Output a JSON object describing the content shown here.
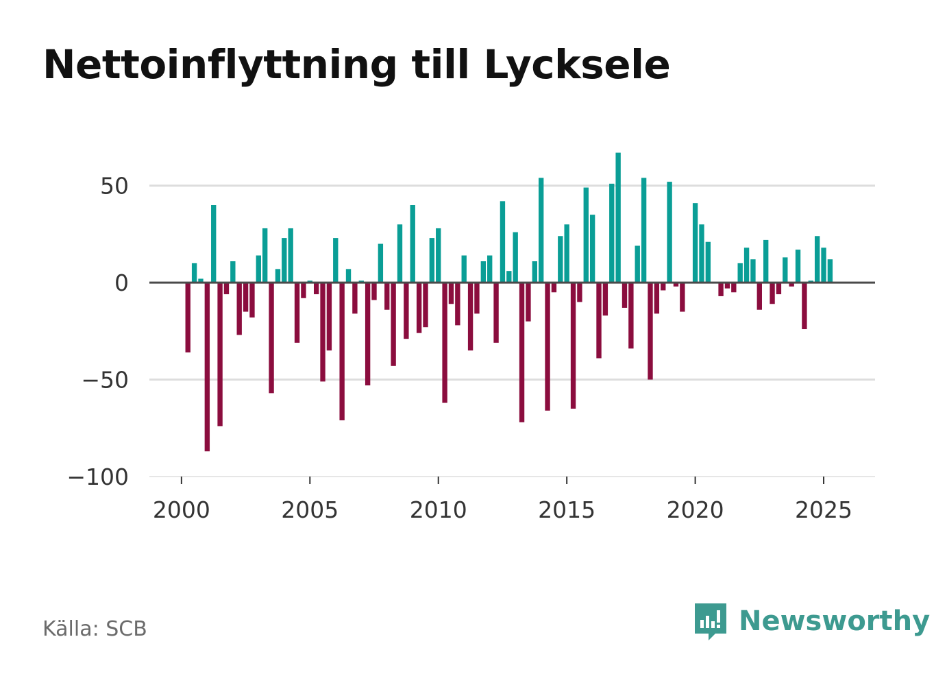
{
  "title": "Nettoinflyttning till Lycksele",
  "source": "Källa: SCB",
  "brand": {
    "name": "Newsworthy",
    "icon": "newsworthy-logo-icon"
  },
  "colors": {
    "positive": "#0a9e96",
    "negative": "#8b0d3e",
    "zero_line": "#4a4a4a",
    "grid": "#dddddd",
    "brand": "#3d9a90"
  },
  "chart_data": {
    "type": "bar",
    "title": "Nettoinflyttning till Lycksele",
    "xlabel": "",
    "ylabel": "",
    "frequency": "quarterly",
    "x_start": 2000.0,
    "x_step": 0.25,
    "xlim": [
      1998.75,
      2027.0
    ],
    "ylim": [
      -100,
      75
    ],
    "x_ticks": [
      2000,
      2005,
      2010,
      2015,
      2020,
      2025
    ],
    "x_tick_labels": [
      "2000",
      "2005",
      "2010",
      "2015",
      "2020",
      "2025"
    ],
    "y_ticks": [
      -100,
      -50,
      0,
      50
    ],
    "y_tick_labels": [
      "−100",
      "−50",
      "0",
      "50"
    ],
    "grid": true,
    "values": [
      0,
      -36,
      10,
      2,
      -87,
      40,
      -74,
      -6,
      11,
      -27,
      -15,
      -18,
      14,
      28,
      -57,
      7,
      23,
      28,
      -31,
      -8,
      1,
      -6,
      -51,
      -35,
      23,
      -71,
      7,
      -16,
      1,
      -53,
      -9,
      20,
      -14,
      -43,
      30,
      -29,
      40,
      -26,
      -23,
      23,
      28,
      -62,
      -11,
      -22,
      14,
      -35,
      -16,
      11,
      14,
      -31,
      42,
      6,
      26,
      -72,
      -20,
      11,
      54,
      -66,
      -5,
      24,
      30,
      -65,
      -10,
      49,
      35,
      -39,
      -17,
      51,
      67,
      -13,
      -34,
      19,
      54,
      -50,
      -16,
      -4,
      52,
      -2,
      -15,
      0,
      41,
      30,
      21,
      0,
      -7,
      -3,
      -5,
      10,
      18,
      12,
      -14,
      22,
      -11,
      -6,
      13,
      -2,
      17,
      -24,
      1,
      24,
      18,
      12
    ]
  }
}
